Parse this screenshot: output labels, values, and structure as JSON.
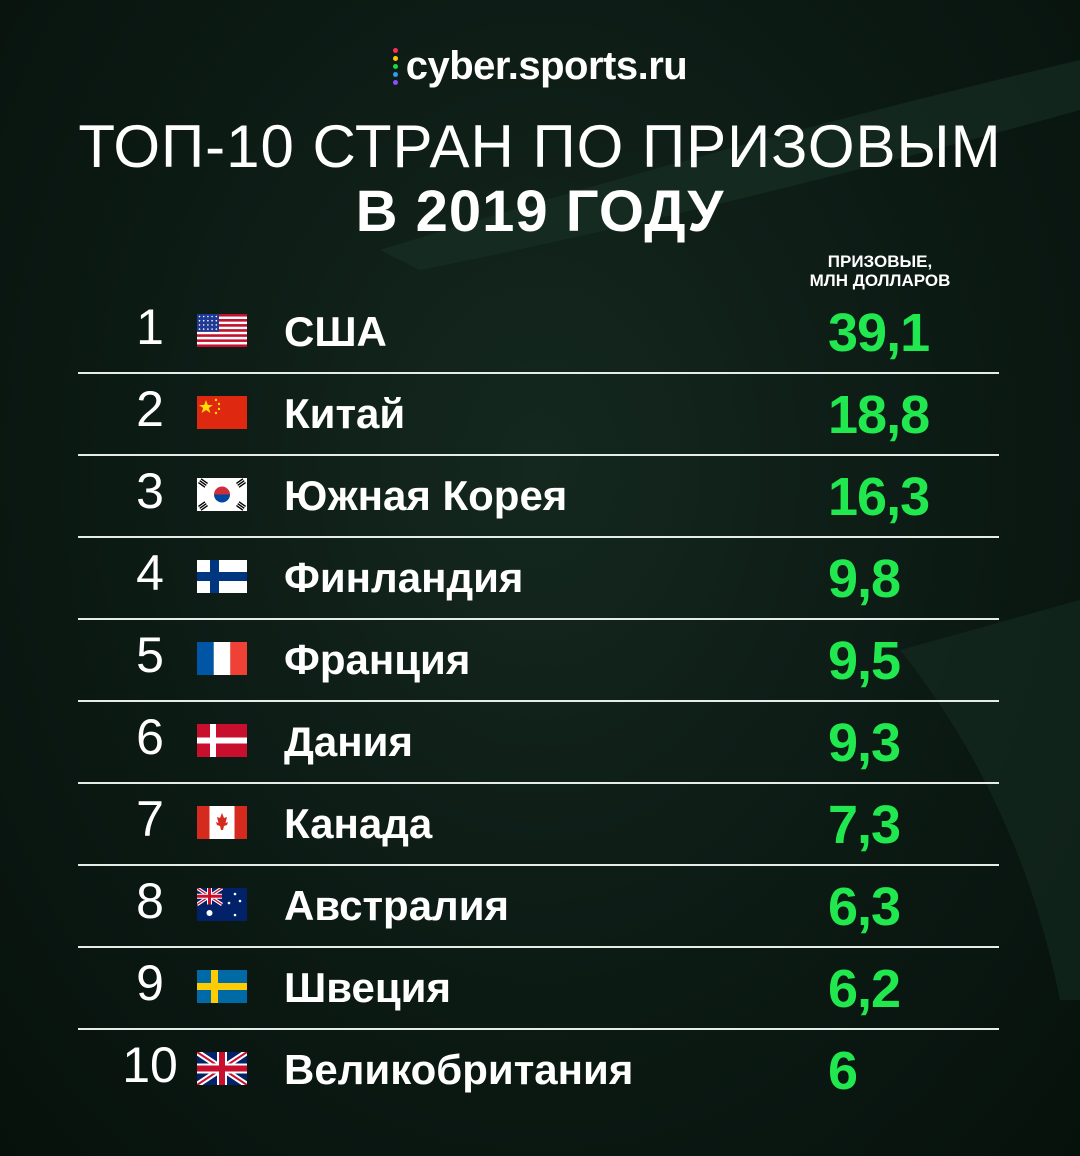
{
  "brand": {
    "name": "cyber.sports.ru",
    "dot_colors": [
      "#ff2d55",
      "#ffcc00",
      "#19d84d",
      "#2a9df4",
      "#8a4dff"
    ]
  },
  "title_line1": "ТОП-10 СТРАН ПО ПРИЗОВЫМ",
  "title_line2": "В 2019 ГОДУ",
  "column_header": [
    "ПРИЗОВЫЕ,",
    "МЛН ДОЛЛАРОВ"
  ],
  "colors": {
    "value": "#22e84f",
    "separator": "#e6ece8"
  },
  "chart_data": {
    "type": "table",
    "columns": [
      "rank",
      "country",
      "prize_musd"
    ],
    "rows": [
      {
        "rank": "1",
        "country": "США",
        "flag": "usa-flag",
        "value": "39,1"
      },
      {
        "rank": "2",
        "country": "Китай",
        "flag": "china-flag",
        "value": "18,8"
      },
      {
        "rank": "3",
        "country": "Южная Корея",
        "flag": "south-korea-flag",
        "value": "16,3"
      },
      {
        "rank": "4",
        "country": "Финландия",
        "flag": "finland-flag",
        "value": "9,8"
      },
      {
        "rank": "5",
        "country": "Франция",
        "flag": "france-flag",
        "value": "9,5"
      },
      {
        "rank": "6",
        "country": "Дания",
        "flag": "denmark-flag",
        "value": "9,3"
      },
      {
        "rank": "7",
        "country": "Канада",
        "flag": "canada-flag",
        "value": "7,3"
      },
      {
        "rank": "8",
        "country": "Австралия",
        "flag": "australia-flag",
        "value": "6,3"
      },
      {
        "rank": "9",
        "country": "Швеция",
        "flag": "sweden-flag",
        "value": "6,2"
      },
      {
        "rank": "10",
        "country": "Великобритания",
        "flag": "uk-flag",
        "value": "6"
      }
    ]
  }
}
